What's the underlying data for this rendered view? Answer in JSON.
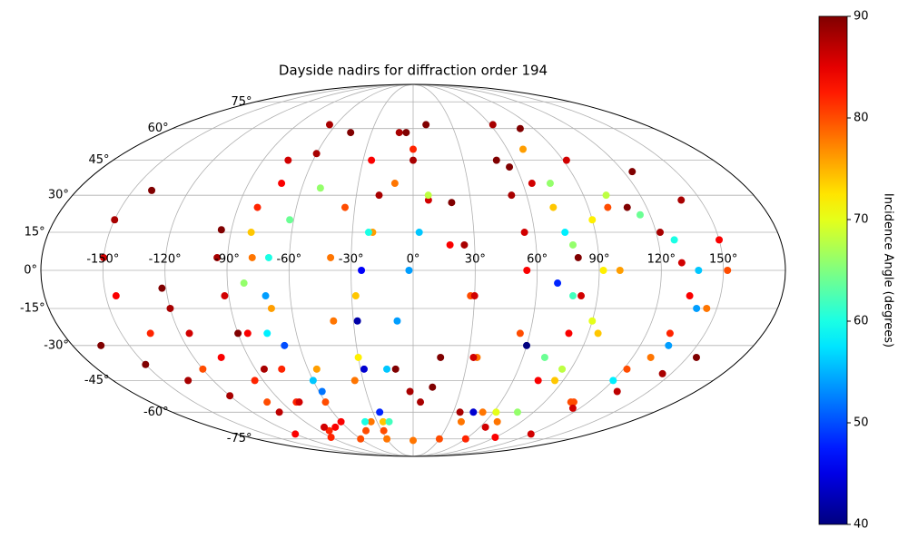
{
  "chart_data": {
    "type": "scatter",
    "projection": "mollweide",
    "title": "Dayside nadirs for diffraction order 194",
    "colorbar_label": "Incidence Angle (degrees)",
    "colormap": "jet",
    "clim": [
      40,
      90
    ],
    "cticks": [
      40,
      50,
      60,
      70,
      80,
      90
    ],
    "grid": true,
    "xticks": [
      {
        "value": -150,
        "label": "-150°"
      },
      {
        "value": -120,
        "label": "-120°"
      },
      {
        "value": -90,
        "label": "-90°"
      },
      {
        "value": -60,
        "label": "-60°"
      },
      {
        "value": -30,
        "label": "-30°"
      },
      {
        "value": 0,
        "label": "0°"
      },
      {
        "value": 30,
        "label": "30°"
      },
      {
        "value": 60,
        "label": "60°"
      },
      {
        "value": 90,
        "label": "90°"
      },
      {
        "value": 120,
        "label": "120°"
      },
      {
        "value": 150,
        "label": "150°"
      }
    ],
    "yticks": [
      {
        "value": -75,
        "label": "-75°"
      },
      {
        "value": -60,
        "label": "-60°"
      },
      {
        "value": -45,
        "label": "-45°"
      },
      {
        "value": -30,
        "label": "-30°"
      },
      {
        "value": -15,
        "label": "-15°"
      },
      {
        "value": 0,
        "label": "0°"
      },
      {
        "value": 15,
        "label": "15°"
      },
      {
        "value": 30,
        "label": "30°"
      },
      {
        "value": 45,
        "label": "45°"
      },
      {
        "value": 60,
        "label": "60°"
      },
      {
        "value": 75,
        "label": "75°"
      }
    ],
    "series": [
      {
        "lon": [
          -140,
          -150,
          -150,
          -145,
          -135,
          -120,
          -100,
          -80
        ],
        "lat": [
          32,
          20,
          5,
          -10,
          -25,
          -40,
          -55,
          -70
        ],
        "angle": [
          90,
          88,
          86,
          84,
          82,
          80,
          80,
          82
        ]
      },
      {
        "lon": [
          -95,
          -95,
          -92,
          -85,
          -75,
          -60,
          -45
        ],
        "lat": [
          16,
          5,
          -10,
          -25,
          -40,
          -55,
          -70
        ],
        "angle": [
          90,
          88,
          86,
          84,
          82,
          80,
          80
        ]
      },
      {
        "lon": [
          -122,
          -120,
          -115,
          -105,
          -95,
          -80,
          -60
        ],
        "lat": [
          -7,
          -15,
          -25,
          -35,
          -45,
          -55,
          -65
        ],
        "angle": [
          90,
          88,
          86,
          84,
          82,
          82,
          84
        ]
      },
      {
        "lon": [
          -165,
          -150,
          -135,
          -120,
          -100,
          -80
        ],
        "lat": [
          -30,
          -38,
          -45,
          -52,
          -60,
          -68
        ],
        "angle": [
          90,
          90,
          88,
          88,
          87,
          86
        ]
      },
      {
        "lon": [
          -65,
          -75,
          -80,
          -78,
          -70,
          -55,
          -35
        ],
        "lat": [
          62,
          45,
          25,
          5,
          -15,
          -40,
          -65
        ],
        "angle": [
          88,
          86,
          82,
          78,
          76,
          76,
          78
        ]
      },
      {
        "lon": [
          -45,
          -60,
          -72,
          -80,
          -82,
          -75,
          -60,
          -40
        ],
        "lat": [
          58,
          48,
          35,
          15,
          -5,
          -25,
          -45,
          -65
        ],
        "angle": [
          90,
          88,
          84,
          74,
          66,
          58,
          56,
          60
        ]
      },
      {
        "lon": [
          -50,
          -62,
          -70,
          -72,
          -68,
          -58
        ],
        "lat": [
          33,
          20,
          5,
          -10,
          -30,
          -50
        ],
        "angle": [
          66,
          64,
          60,
          54,
          50,
          52
        ]
      },
      {
        "lon": [
          -10,
          -25,
          -35,
          -40,
          -40,
          -35,
          -28
        ],
        "lat": [
          58,
          45,
          25,
          5,
          -20,
          -45,
          -70
        ],
        "angle": [
          88,
          84,
          80,
          78,
          78,
          78,
          80
        ]
      },
      {
        "lon": [
          -5,
          0,
          8,
          18,
          28,
          35,
          40
        ],
        "lat": [
          58,
          45,
          28,
          10,
          -10,
          -35,
          -65
        ],
        "angle": [
          90,
          88,
          86,
          84,
          80,
          78,
          78
        ]
      },
      {
        "lon": [
          10,
          0,
          -10,
          -20,
          -28,
          -30,
          -25
        ],
        "lat": [
          62,
          50,
          35,
          15,
          -10,
          -35,
          -65
        ],
        "angle": [
          90,
          82,
          78,
          76,
          74,
          72,
          74
        ]
      },
      {
        "lon": [
          -18,
          -22,
          -25,
          -28,
          -28,
          -25
        ],
        "lat": [
          30,
          15,
          0,
          -20,
          -40,
          -60
        ],
        "angle": [
          88,
          60,
          46,
          42,
          44,
          48
        ]
      },
      {
        "lon": [
          8,
          3,
          -2,
          -8,
          -15,
          -20
        ],
        "lat": [
          30,
          15,
          0,
          -20,
          -40,
          -65
        ],
        "angle": [
          68,
          56,
          54,
          54,
          56,
          62
        ]
      },
      {
        "lon": [
          20,
          25,
          30,
          33,
          35
        ],
        "lat": [
          27,
          10,
          -10,
          -35,
          -60
        ],
        "angle": [
          90,
          88,
          86,
          86,
          88
        ]
      },
      {
        "lon": [
          50,
          52,
          55,
          55,
          55,
          52
        ],
        "lat": [
          45,
          30,
          15,
          0,
          -25,
          -60
        ],
        "angle": [
          90,
          88,
          86,
          84,
          80,
          78
        ]
      },
      {
        "lon": [
          62,
          70,
          75,
          75,
          70,
          60,
          45
        ],
        "lat": [
          62,
          50,
          35,
          15,
          -5,
          -30,
          -60
        ],
        "angle": [
          88,
          76,
          66,
          58,
          48,
          40,
          44
        ]
      },
      {
        "lon": [
          56,
          65,
          72,
          78,
          78,
          72,
          62
        ],
        "lat": [
          42,
          35,
          25,
          10,
          -10,
          -35,
          -60
        ],
        "angle": [
          90,
          86,
          74,
          66,
          62,
          64,
          70
        ]
      },
      {
        "lon": [
          80,
          92,
          100,
          100,
          95,
          85,
          70
        ],
        "lat": [
          60,
          45,
          25,
          0,
          -25,
          -45,
          -65
        ],
        "angle": [
          90,
          86,
          80,
          76,
          74,
          74,
          78
        ]
      },
      {
        "lon": [
          90,
          92,
          90,
          85,
          78
        ],
        "lat": [
          20,
          0,
          -20,
          -40,
          -60
        ],
        "angle": [
          72,
          72,
          70,
          68,
          66
        ]
      },
      {
        "lon": [
          80,
          82,
          80,
          75,
          65
        ],
        "lat": [
          5,
          -10,
          -25,
          -45,
          -68
        ],
        "angle": [
          90,
          86,
          84,
          84,
          86
        ]
      },
      {
        "lon": [
          110,
          122,
          130,
          135,
          132,
          122,
          108
        ],
        "lat": [
          25,
          15,
          3,
          -10,
          -25,
          -40,
          -55
        ],
        "angle": [
          90,
          88,
          86,
          84,
          82,
          80,
          80
        ]
      },
      {
        "lon": [
          102,
          115,
          128,
          138,
          140,
          135,
          120
        ],
        "lat": [
          30,
          22,
          12,
          0,
          -15,
          -30,
          -45
        ],
        "angle": [
          68,
          64,
          60,
          56,
          54,
          54,
          58
        ]
      },
      {
        "lon": [
          125,
          140,
          150,
          152,
          145,
          130,
          110
        ],
        "lat": [
          40,
          28,
          12,
          0,
          -15,
          -35,
          -55
        ],
        "angle": [
          90,
          88,
          84,
          80,
          78,
          78,
          80
        ]
      },
      {
        "lon": [
          155,
          145,
          130,
          115
        ],
        "lat": [
          -35,
          -42,
          -50,
          -58
        ],
        "angle": [
          90,
          88,
          87,
          86
        ]
      },
      {
        "lon": [
          -120,
          -90,
          -60,
          -30,
          0,
          30,
          60,
          90,
          120
        ],
        "lat": [
          -72,
          -74,
          -75,
          -75,
          -76,
          -75,
          -75,
          -74,
          -72
        ],
        "angle": [
          84,
          82,
          80,
          78,
          78,
          80,
          82,
          84,
          86
        ]
      },
      {
        "lon": [
          -10,
          -2,
          5,
          12,
          15
        ],
        "lat": [
          -40,
          -50,
          -55,
          -48,
          -35
        ],
        "angle": [
          90,
          88,
          88,
          90,
          90
        ]
      },
      {
        "lon": [
          -90,
          -85,
          -78,
          -70
        ],
        "lat": [
          -25,
          -40,
          -55,
          -68
        ],
        "angle": [
          90,
          88,
          86,
          84
        ]
      }
    ]
  }
}
